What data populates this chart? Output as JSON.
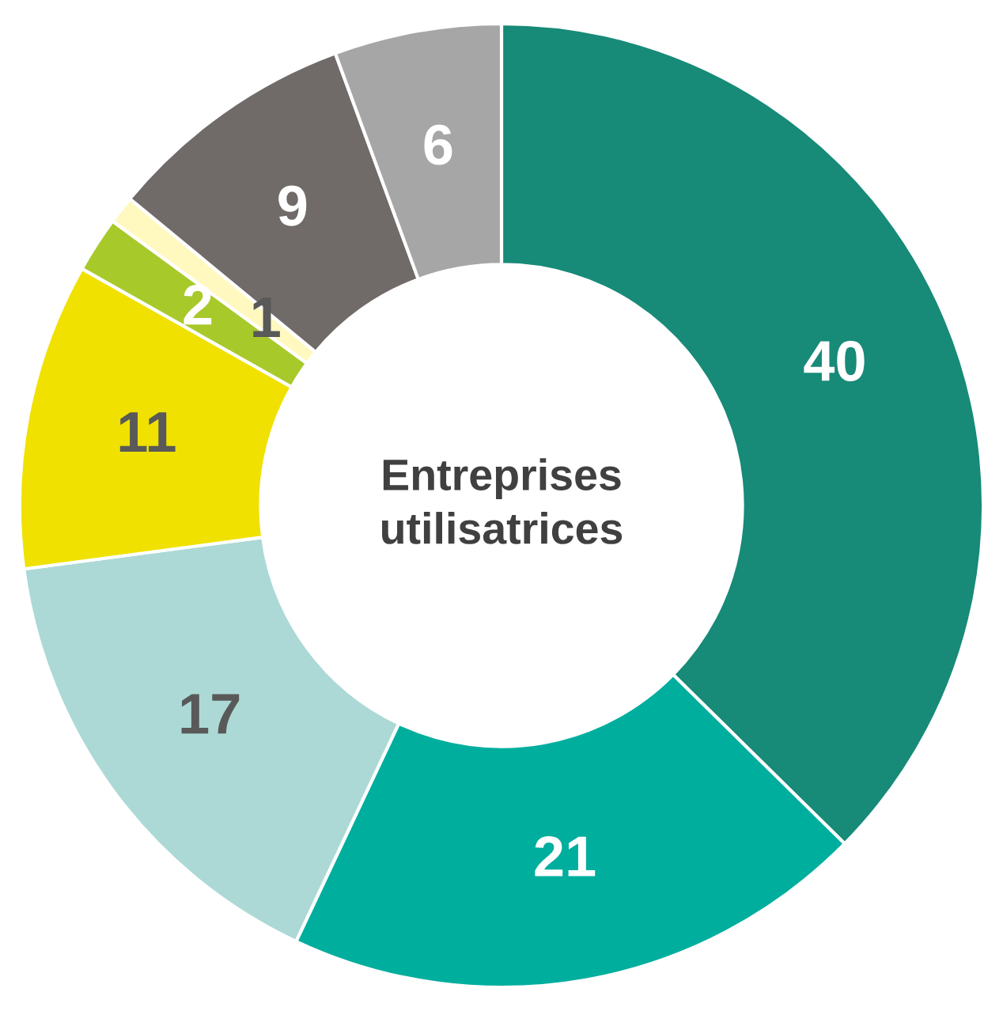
{
  "chart_data": {
    "type": "donut",
    "title": "Entreprises\nutilisatrices",
    "categories": [
      null,
      null,
      null,
      null,
      null,
      null,
      null,
      null
    ],
    "values": [
      40,
      21,
      17,
      11,
      2,
      1,
      9,
      6
    ],
    "colors": [
      "#178a78",
      "#00ae9e",
      "#acd9d6",
      "#f0e100",
      "#a8c92a",
      "#fff9c0",
      "#706b69",
      "#a6a6a6"
    ],
    "data_labels": true,
    "legend": false
  }
}
